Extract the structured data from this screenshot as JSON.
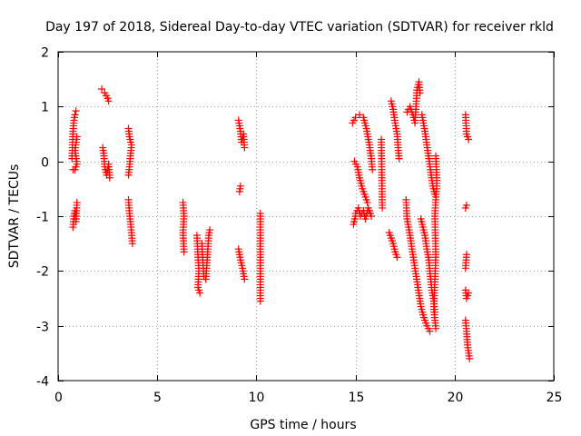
{
  "chart_data": {
    "type": "scatter",
    "title": "Day 197 of 2018, Sidereal Day-to-day VTEC variation (SDTVAR) for receiver rkld",
    "xlabel": "GPS time / hours",
    "ylabel": "SDTVAR / TECUs",
    "xlim": [
      0,
      25
    ],
    "ylim": [
      -4,
      2
    ],
    "xticks": [
      "0",
      "5",
      "10",
      "15",
      "20",
      "25"
    ],
    "yticks": [
      "2",
      "1",
      "0",
      "-1",
      "-2",
      "-3",
      "-4"
    ],
    "grid": true,
    "marker": "+",
    "marker_color": "#ff0000",
    "series": [
      {
        "name": "SDTVAR",
        "segments": [
          [
            [
              0.7,
              0.05
            ],
            [
              0.75,
              0.55
            ],
            [
              0.8,
              0.75
            ],
            [
              0.85,
              0.85
            ],
            [
              0.9,
              0.92
            ]
          ],
          [
            [
              0.75,
              -0.15
            ],
            [
              0.85,
              -0.15
            ],
            [
              0.95,
              -0.05
            ],
            [
              0.85,
              0.2
            ],
            [
              0.95,
              0.45
            ]
          ],
          [
            [
              0.75,
              -1.2
            ],
            [
              0.8,
              -1.0
            ],
            [
              0.85,
              -0.9
            ],
            [
              0.9,
              -1.1
            ],
            [
              0.95,
              -0.75
            ]
          ],
          [
            [
              2.2,
              1.32
            ],
            [
              2.35,
              1.25
            ],
            [
              2.5,
              1.15
            ],
            [
              2.55,
              1.1
            ]
          ],
          [
            [
              2.25,
              0.25
            ],
            [
              2.3,
              0.15
            ],
            [
              2.35,
              -0.1
            ],
            [
              2.45,
              -0.25
            ],
            [
              2.55,
              -0.05
            ],
            [
              2.6,
              -0.3
            ]
          ],
          [
            [
              3.55,
              0.6
            ],
            [
              3.6,
              0.45
            ],
            [
              3.7,
              0.3
            ],
            [
              3.65,
              0.1
            ],
            [
              3.6,
              -0.1
            ],
            [
              3.55,
              -0.25
            ]
          ],
          [
            [
              3.55,
              -0.7
            ],
            [
              3.6,
              -0.95
            ],
            [
              3.65,
              -1.1
            ],
            [
              3.7,
              -1.3
            ],
            [
              3.75,
              -1.5
            ]
          ],
          [
            [
              6.3,
              -0.75
            ],
            [
              6.35,
              -1.0
            ],
            [
              6.3,
              -1.3
            ],
            [
              6.35,
              -1.65
            ]
          ],
          [
            [
              7.0,
              -1.35
            ],
            [
              7.05,
              -1.7
            ],
            [
              7.1,
              -2.0
            ],
            [
              7.05,
              -2.3
            ],
            [
              7.15,
              -2.4
            ]
          ],
          [
            [
              7.25,
              -1.5
            ],
            [
              7.3,
              -1.8
            ],
            [
              7.35,
              -2.1
            ],
            [
              7.45,
              -2.15
            ],
            [
              7.5,
              -1.9
            ],
            [
              7.55,
              -1.6
            ],
            [
              7.6,
              -1.35
            ],
            [
              7.65,
              -1.25
            ]
          ],
          [
            [
              9.1,
              0.75
            ],
            [
              9.2,
              0.55
            ],
            [
              9.25,
              0.35
            ],
            [
              9.35,
              0.5
            ],
            [
              9.4,
              0.25
            ]
          ],
          [
            [
              9.15,
              -0.55
            ],
            [
              9.2,
              -0.45
            ]
          ],
          [
            [
              9.1,
              -1.6
            ],
            [
              9.2,
              -1.8
            ],
            [
              9.3,
              -1.95
            ],
            [
              9.4,
              -2.15
            ]
          ],
          [
            [
              10.2,
              -0.95
            ],
            [
              10.2,
              -1.8
            ],
            [
              10.2,
              -2.55
            ]
          ],
          [
            [
              14.85,
              0.7
            ],
            [
              15.0,
              0.8
            ],
            [
              15.2,
              0.85
            ],
            [
              15.4,
              0.8
            ],
            [
              15.55,
              0.6
            ],
            [
              15.7,
              0.3
            ],
            [
              15.8,
              0.05
            ],
            [
              15.85,
              -0.15
            ]
          ],
          [
            [
              14.95,
              0.0
            ],
            [
              15.1,
              -0.1
            ],
            [
              15.2,
              -0.3
            ],
            [
              15.35,
              -0.5
            ],
            [
              15.5,
              -0.65
            ],
            [
              15.6,
              -0.75
            ]
          ],
          [
            [
              15.0,
              -0.95
            ],
            [
              15.15,
              -0.85
            ],
            [
              15.25,
              -1.0
            ],
            [
              15.4,
              -0.9
            ],
            [
              15.5,
              -1.05
            ],
            [
              15.65,
              -0.85
            ],
            [
              15.8,
              -1.0
            ]
          ],
          [
            [
              14.9,
              -1.15
            ],
            [
              15.0,
              -1.0
            ]
          ],
          [
            [
              16.3,
              0.4
            ],
            [
              16.35,
              -0.85
            ]
          ],
          [
            [
              16.8,
              1.1
            ],
            [
              16.9,
              0.95
            ],
            [
              17.0,
              0.7
            ],
            [
              17.1,
              0.5
            ],
            [
              17.15,
              0.25
            ],
            [
              17.2,
              0.05
            ]
          ],
          [
            [
              16.7,
              -1.3
            ],
            [
              16.8,
              -1.4
            ],
            [
              16.9,
              -1.5
            ],
            [
              17.0,
              -1.65
            ],
            [
              17.1,
              -1.75
            ]
          ],
          [
            [
              17.6,
              0.9
            ],
            [
              17.75,
              1.0
            ],
            [
              17.9,
              0.85
            ],
            [
              18.0,
              0.7
            ],
            [
              18.1,
              1.3
            ],
            [
              18.2,
              1.45
            ],
            [
              18.25,
              1.25
            ]
          ],
          [
            [
              17.55,
              -0.7
            ],
            [
              17.6,
              -1.05
            ],
            [
              17.75,
              -1.35
            ],
            [
              17.85,
              -1.6
            ],
            [
              18.0,
              -1.95
            ],
            [
              18.15,
              -2.3
            ],
            [
              18.3,
              -2.65
            ],
            [
              18.45,
              -2.85
            ],
            [
              18.6,
              -3.0
            ],
            [
              18.75,
              -3.1
            ]
          ],
          [
            [
              18.35,
              0.85
            ],
            [
              18.5,
              0.55
            ],
            [
              18.6,
              0.3
            ],
            [
              18.7,
              0.05
            ],
            [
              18.8,
              -0.2
            ],
            [
              18.9,
              -0.45
            ],
            [
              19.0,
              -0.6
            ]
          ],
          [
            [
              18.3,
              -1.05
            ],
            [
              18.5,
              -1.35
            ],
            [
              18.6,
              -1.6
            ],
            [
              18.7,
              -1.8
            ],
            [
              18.75,
              -2.0
            ],
            [
              18.85,
              -2.35
            ],
            [
              18.95,
              -2.55
            ],
            [
              19.0,
              -2.75
            ]
          ],
          [
            [
              19.05,
              0.1
            ],
            [
              19.1,
              -0.4
            ],
            [
              19.0,
              -1.0
            ],
            [
              19.05,
              -1.7
            ],
            [
              19.0,
              -2.2
            ],
            [
              18.95,
              -2.7
            ],
            [
              19.05,
              -3.05
            ]
          ],
          [
            [
              20.55,
              0.85
            ],
            [
              20.6,
              0.5
            ],
            [
              20.7,
              0.4
            ]
          ],
          [
            [
              20.55,
              -0.85
            ],
            [
              20.6,
              -0.8
            ]
          ],
          [
            [
              20.55,
              -1.95
            ],
            [
              20.6,
              -1.7
            ]
          ],
          [
            [
              20.55,
              -2.35
            ],
            [
              20.6,
              -2.5
            ],
            [
              20.7,
              -2.4
            ]
          ],
          [
            [
              20.55,
              -2.9
            ],
            [
              20.6,
              -3.1
            ],
            [
              20.65,
              -3.35
            ],
            [
              20.75,
              -3.6
            ]
          ]
        ]
      }
    ]
  }
}
